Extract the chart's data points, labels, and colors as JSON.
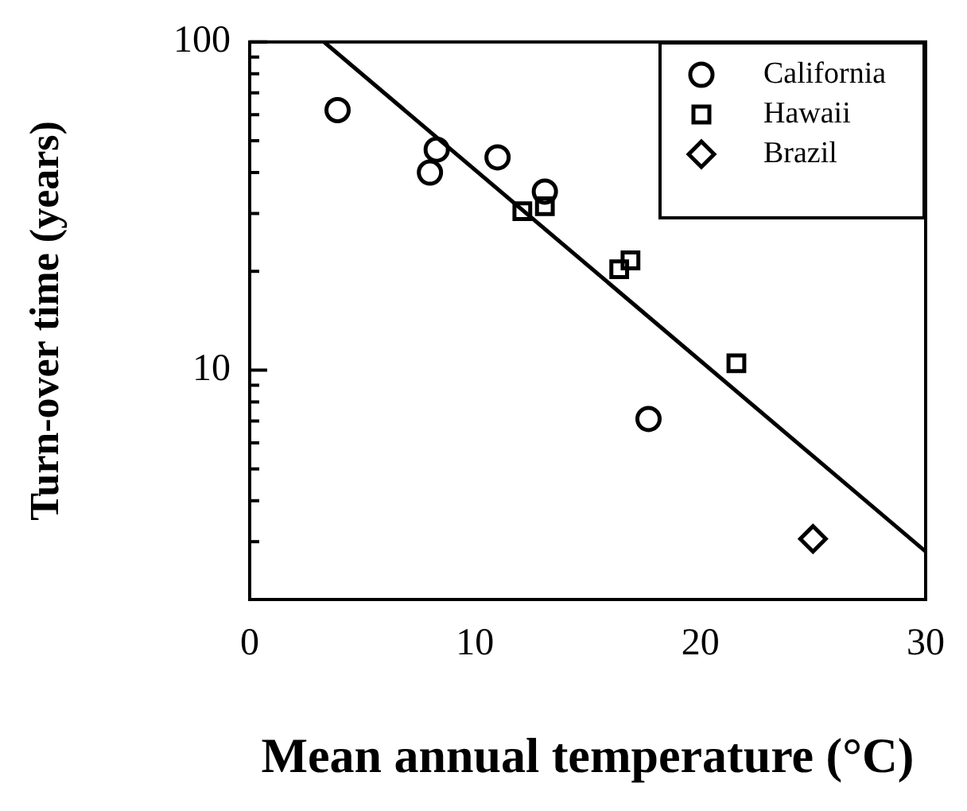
{
  "chart_data": {
    "type": "scatter",
    "xlabel": "Mean annual temperature (°C)",
    "ylabel": "Turn-over time (years)",
    "log": "y",
    "grid": false,
    "legend": "top right",
    "xlim": [
      0,
      30
    ],
    "xticks": [
      0,
      10,
      20,
      30
    ],
    "ylim": [
      2,
      100
    ],
    "yticks": [
      {
        "value": 3,
        "label": null
      },
      {
        "value": 4,
        "label": null
      },
      {
        "value": 5,
        "label": null
      },
      {
        "value": 6,
        "label": null
      },
      {
        "value": 7,
        "label": null
      },
      {
        "value": 8,
        "label": null
      },
      {
        "value": 9,
        "label": null
      },
      10,
      {
        "value": 20,
        "label": null
      },
      {
        "value": 30,
        "label": null
      },
      {
        "value": 40,
        "label": null
      },
      {
        "value": 50,
        "label": null
      },
      {
        "value": 60,
        "label": null
      },
      {
        "value": 70,
        "label": null
      },
      {
        "value": 80,
        "label": null
      },
      {
        "value": 90,
        "label": null
      },
      100
    ],
    "series": [
      {
        "name": "California",
        "color": "#000000",
        "marker": "circle",
        "x": [
          3.9,
          8.0,
          8.3,
          11.0,
          13.1,
          17.7
        ],
        "values": [
          62,
          40,
          47,
          44.5,
          35,
          7.1
        ]
      },
      {
        "name": "Hawaii",
        "color": "#000000",
        "marker": "square",
        "x": [
          12.1,
          13.1,
          16.4,
          16.9,
          21.6
        ],
        "values": [
          30.5,
          31.6,
          20.3,
          21.6,
          10.5
        ]
      },
      {
        "name": "Brazil",
        "color": "#000000",
        "marker": "diamond",
        "x": [
          25.0
        ],
        "values": [
          3.06
        ]
      },
      {
        "type": "line",
        "color": "#000000",
        "marker": "none",
        "line_style": "solid",
        "x": [
          3.3,
          30
        ],
        "values": [
          100,
          2.8
        ]
      }
    ]
  }
}
